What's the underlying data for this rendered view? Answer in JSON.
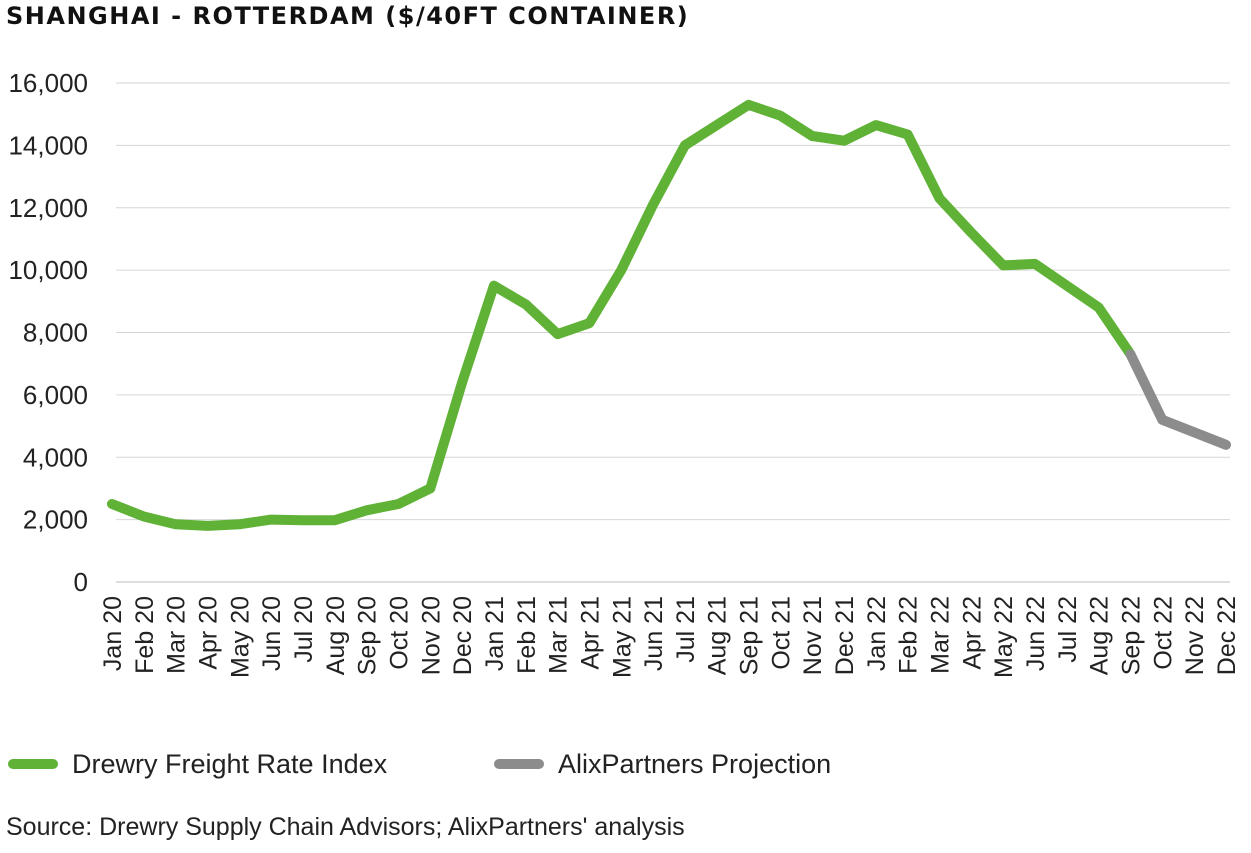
{
  "title": "SHANGHAI - ROTTERDAM ($/40FT CONTAINER)",
  "source": "Source: Drewry Supply Chain Advisors; AlixPartners' analysis",
  "chart_data": {
    "type": "line",
    "title": "SHANGHAI - ROTTERDAM ($/40FT CONTAINER)",
    "xlabel": "",
    "ylabel": "",
    "ylim": [
      0,
      16000
    ],
    "yticks": [
      0,
      2000,
      4000,
      6000,
      8000,
      10000,
      12000,
      14000,
      16000
    ],
    "ytick_labels": [
      "0",
      "2,000",
      "4,000",
      "6,000",
      "8,000",
      "10,000",
      "12,000",
      "14,000",
      "16,000"
    ],
    "grid": "horizontal",
    "legend_position": "bottom",
    "categories": [
      "Jan 20",
      "Feb 20",
      "Mar 20",
      "Apr 20",
      "May 20",
      "Jun 20",
      "Jul 20",
      "Aug 20",
      "Sep 20",
      "Oct 20",
      "Nov 20",
      "Dec 20",
      "Jan 21",
      "Feb 21",
      "Mar 21",
      "Apr 21",
      "May 21",
      "Jun 21",
      "Jul 21",
      "Aug 21",
      "Sep 21",
      "Oct 21",
      "Nov 21",
      "Dec 21",
      "Jan 22",
      "Feb 22",
      "Mar 22",
      "Apr 22",
      "May 22",
      "Jun 22",
      "Jul 22",
      "Aug 22",
      "Sep 22",
      "Oct 22",
      "Nov 22",
      "Dec 22"
    ],
    "series": [
      {
        "name": "Drewry Freight Rate Index",
        "color": "#5fb236",
        "values": [
          2500,
          2100,
          1850,
          1800,
          1850,
          2000,
          1980,
          1980,
          2300,
          2500,
          3000,
          6400,
          9500,
          8900,
          7950,
          8300,
          10000,
          12100,
          14000,
          14650,
          15300,
          14950,
          14300,
          14150,
          14650,
          14350,
          12300,
          11200,
          10150,
          10200,
          9500,
          8800,
          7300,
          null,
          null,
          null
        ]
      },
      {
        "name": "AlixPartners Projection",
        "color": "#8c8c8c",
        "values": [
          null,
          null,
          null,
          null,
          null,
          null,
          null,
          null,
          null,
          null,
          null,
          null,
          null,
          null,
          null,
          null,
          null,
          null,
          null,
          null,
          null,
          null,
          null,
          null,
          null,
          null,
          null,
          null,
          null,
          null,
          null,
          null,
          7300,
          5200,
          4800,
          4400
        ]
      }
    ]
  }
}
